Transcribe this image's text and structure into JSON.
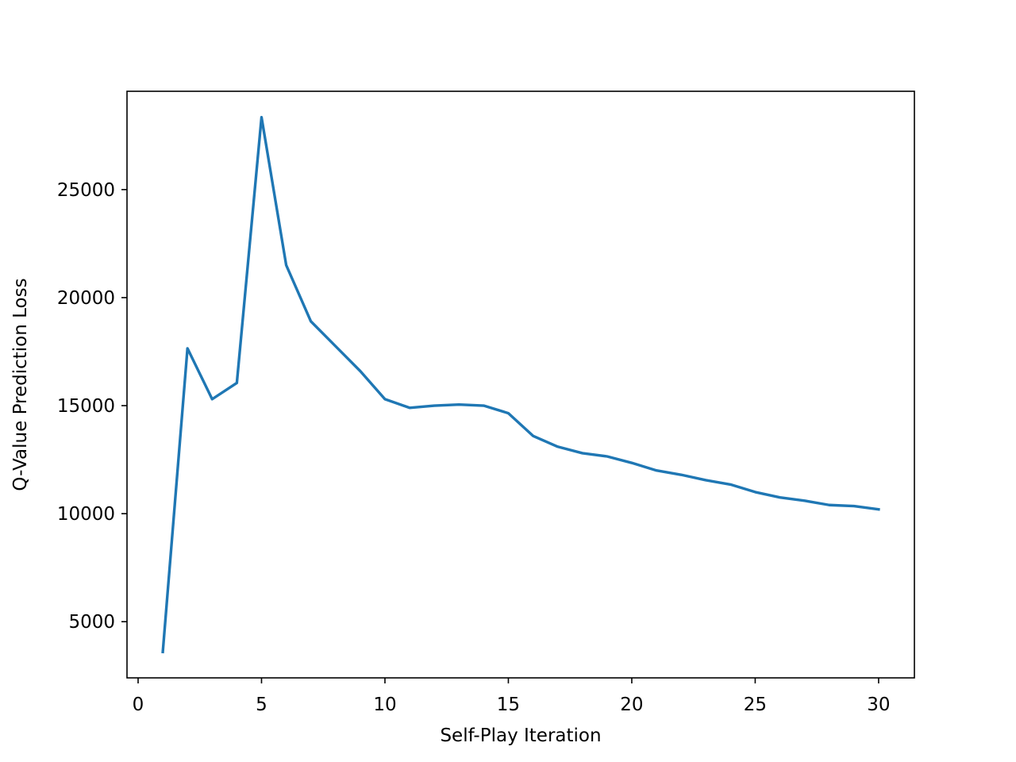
{
  "chart_data": {
    "type": "line",
    "title": "",
    "xlabel": "Self-Play Iteration",
    "ylabel": "Q-Value Prediction Loss",
    "xlim": [
      -0.45,
      31.45
    ],
    "ylim": [
      2400,
      29550
    ],
    "xticks": [
      0,
      5,
      10,
      15,
      20,
      25,
      30
    ],
    "yticks": [
      5000,
      10000,
      15000,
      20000,
      25000
    ],
    "grid": false,
    "legend": "none",
    "series": [
      {
        "color": "#1f77b4",
        "x": [
          1,
          2,
          3,
          4,
          5,
          6,
          7,
          8,
          9,
          10,
          11,
          12,
          13,
          14,
          15,
          16,
          17,
          18,
          19,
          20,
          21,
          22,
          23,
          24,
          25,
          26,
          27,
          28,
          29,
          30
        ],
        "y": [
          3600,
          17650,
          15300,
          16050,
          28350,
          21500,
          18900,
          17750,
          16600,
          15300,
          14900,
          15000,
          15050,
          15000,
          14650,
          13600,
          13100,
          12800,
          12650,
          12350,
          12000,
          11800,
          11550,
          11350,
          11000,
          10750,
          10600,
          10400,
          10350,
          10200
        ]
      }
    ]
  }
}
